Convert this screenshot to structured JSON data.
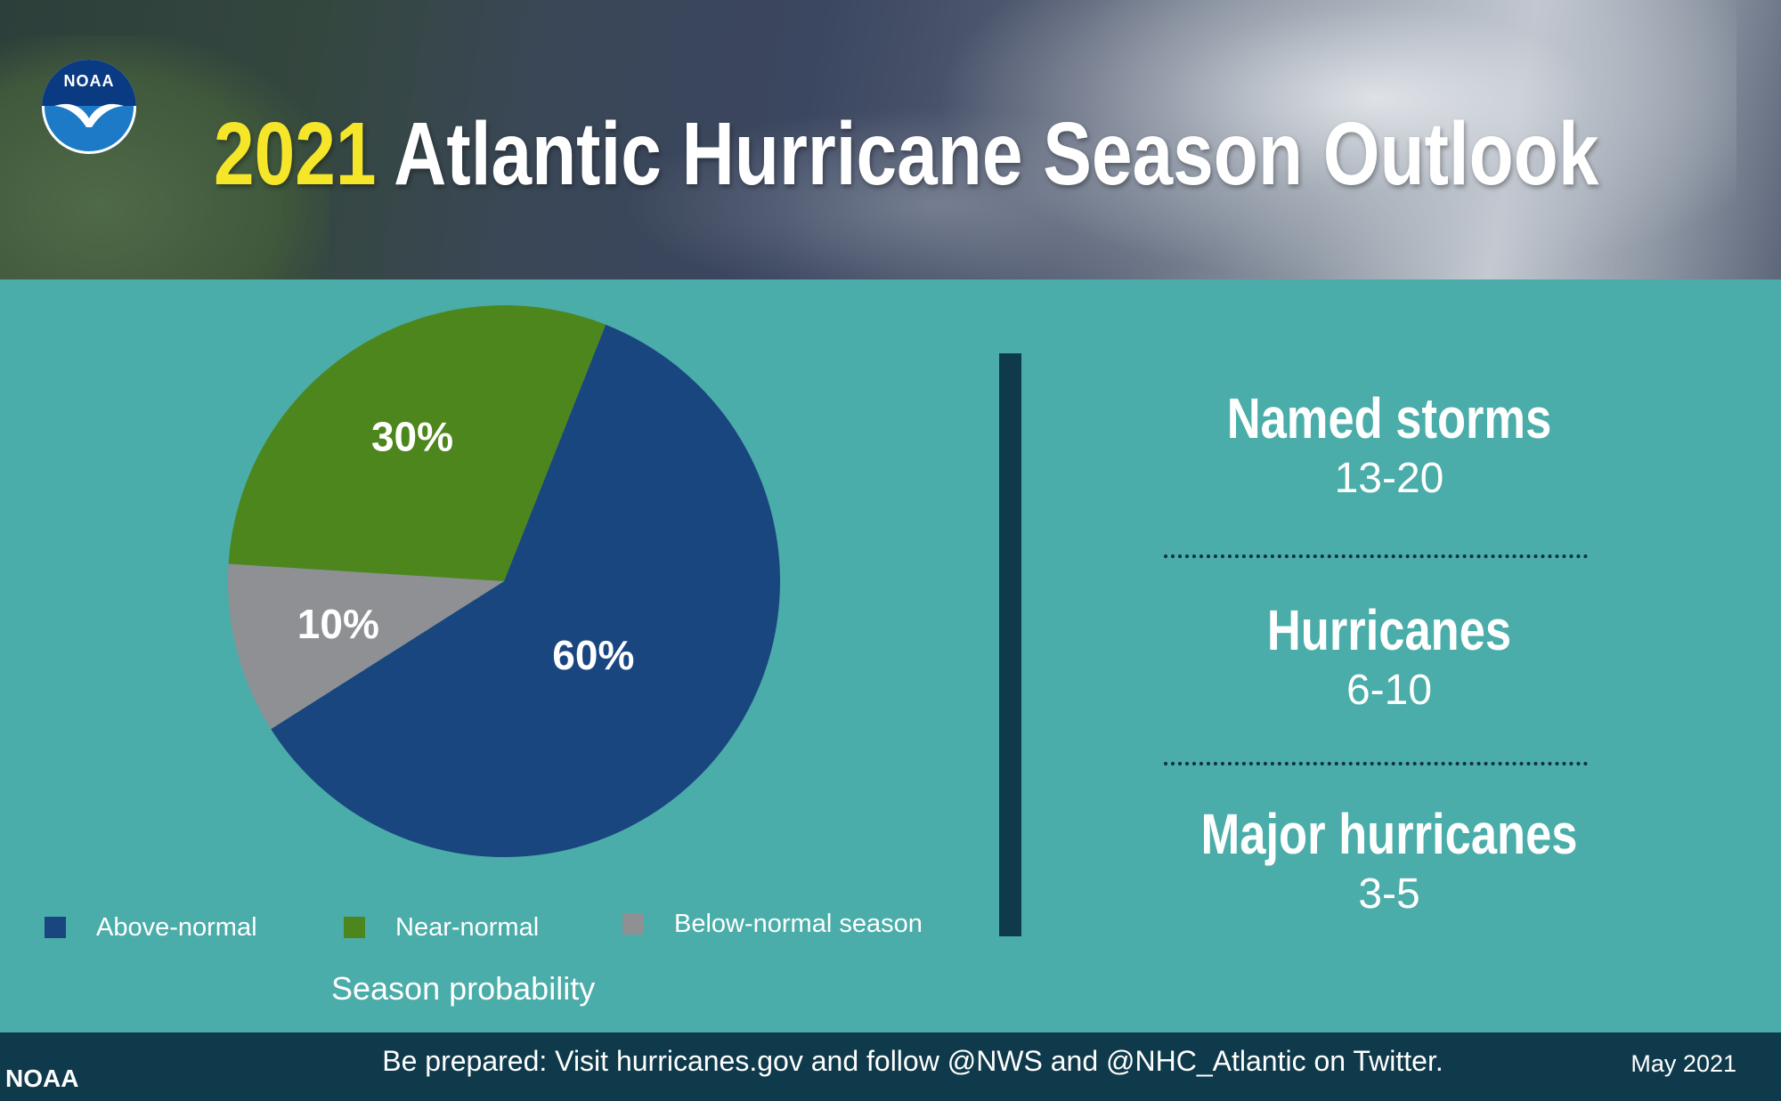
{
  "header": {
    "logo_text": "NOAA",
    "title_year": "2021",
    "title_rest": "Atlantic Hurricane Season Outlook"
  },
  "chart_data": {
    "type": "pie",
    "title": "Season probability",
    "slices": [
      {
        "label": "Above-normal",
        "value": 60,
        "display": "60%",
        "color": "#1a4680"
      },
      {
        "label": "Near-normal",
        "value": 30,
        "display": "30%",
        "color": "#4d861c"
      },
      {
        "label": "Below-normal season",
        "value": 10,
        "display": "10%",
        "color": "#8e9093"
      }
    ],
    "legend_position": "bottom"
  },
  "stats": [
    {
      "label": "Named storms",
      "value": "13-20"
    },
    {
      "label": "Hurricanes",
      "value": "6-10"
    },
    {
      "label": "Major hurricanes",
      "value": "3-5"
    }
  ],
  "footer": {
    "agency": "NOAA",
    "message": "Be prepared: Visit hurricanes.gov and follow @NWS and @NHC_Atlantic on Twitter.",
    "date": "May 2021"
  },
  "colors": {
    "background": "#4aada9",
    "footer": "#0f3a4b",
    "title_year": "#f5e62a"
  }
}
